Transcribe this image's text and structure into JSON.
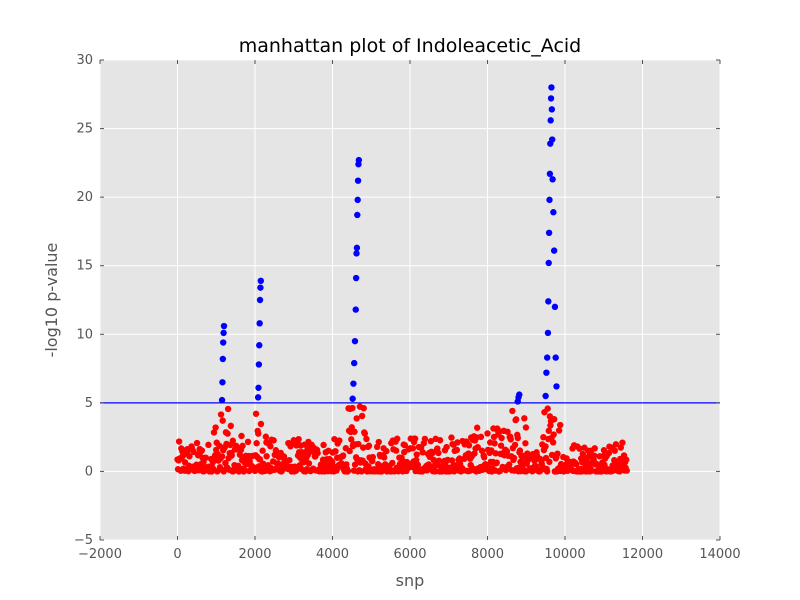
{
  "chart_data": {
    "type": "scatter",
    "title": "manhattan plot of Indoleacetic_Acid",
    "xlabel": "snp",
    "ylabel": "-log10 p-value",
    "xlim": [
      -2000,
      14000
    ],
    "ylim": [
      -5,
      30
    ],
    "xticks": [
      -2000,
      0,
      2000,
      4000,
      6000,
      8000,
      10000,
      12000,
      14000
    ],
    "yticks": [
      -5,
      0,
      5,
      10,
      15,
      20,
      25,
      30
    ],
    "grid": true,
    "threshold": 5,
    "colors": {
      "background": "#e5e5e5",
      "grid": "#ffffff",
      "below_threshold": "#ff0000",
      "above_threshold": "#0000ff",
      "threshold_line": "#0000ff"
    },
    "peaks_above_threshold": [
      {
        "x": [
          1150,
          1160,
          1170,
          1180,
          1190,
          1200
        ],
        "y": [
          5.2,
          6.5,
          8.2,
          9.4,
          10.1,
          10.6
        ]
      },
      {
        "x": [
          2080,
          2090,
          2100,
          2110,
          2120,
          2130,
          2140,
          2150
        ],
        "y": [
          5.4,
          6.1,
          7.8,
          9.2,
          10.8,
          12.5,
          13.4,
          13.9
        ]
      },
      {
        "x": [
          4520,
          4540,
          4560,
          4580,
          4600,
          4610,
          4620,
          4630,
          4640,
          4650,
          4660,
          4670,
          4680
        ],
        "y": [
          5.3,
          6.4,
          7.9,
          9.5,
          11.8,
          14.1,
          15.9,
          16.3,
          18.7,
          19.8,
          21.2,
          22.4,
          22.7
        ]
      },
      {
        "x": [
          8780,
          8800,
          8820
        ],
        "y": [
          5.1,
          5.4,
          5.6
        ]
      },
      {
        "x": [
          9500,
          9520,
          9540,
          9560,
          9570,
          9580,
          9590,
          9600,
          9610,
          9620,
          9630,
          9640,
          9650,
          9660,
          9670,
          9680,
          9700,
          9720,
          9740,
          9760,
          9780
        ],
        "y": [
          5.5,
          7.2,
          8.3,
          10.1,
          12.4,
          15.2,
          17.4,
          19.8,
          21.7,
          23.9,
          25.6,
          27.2,
          28.0,
          26.4,
          24.2,
          21.3,
          18.9,
          16.1,
          12.0,
          8.3,
          6.2
        ]
      }
    ],
    "background_segments_below_threshold": [
      {
        "x_start": 0,
        "x_end": 900,
        "max_y": 2.2
      },
      {
        "x_start": 900,
        "x_end": 1400,
        "max_y": 4.6
      },
      {
        "x_start": 1400,
        "x_end": 2000,
        "max_y": 2.6
      },
      {
        "x_start": 2000,
        "x_end": 2300,
        "max_y": 4.5
      },
      {
        "x_start": 2300,
        "x_end": 4400,
        "max_y": 2.4
      },
      {
        "x_start": 4400,
        "x_end": 4900,
        "max_y": 4.8
      },
      {
        "x_start": 4900,
        "x_end": 7300,
        "max_y": 2.6
      },
      {
        "x_start": 7300,
        "x_end": 8600,
        "max_y": 3.2
      },
      {
        "x_start": 8600,
        "x_end": 9000,
        "max_y": 4.6
      },
      {
        "x_start": 9000,
        "x_end": 9400,
        "max_y": 1.5
      },
      {
        "x_start": 9400,
        "x_end": 9900,
        "max_y": 4.9
      },
      {
        "x_start": 9900,
        "x_end": 11600,
        "max_y": 2.2
      }
    ]
  }
}
